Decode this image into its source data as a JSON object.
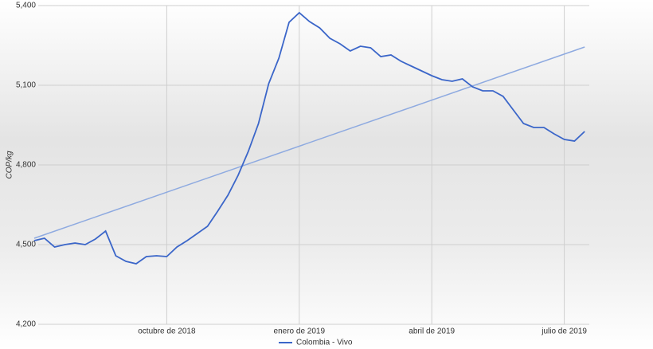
{
  "chart_data": {
    "type": "line",
    "y_label": "COP/kg",
    "categories": [
      null,
      null,
      null,
      null,
      null,
      null,
      null,
      null,
      null,
      null,
      null,
      null,
      null,
      "octubre de 2018",
      null,
      null,
      null,
      null,
      null,
      null,
      null,
      null,
      null,
      null,
      null,
      null,
      "enero de 2019",
      null,
      null,
      null,
      null,
      null,
      null,
      null,
      null,
      null,
      null,
      null,
      null,
      "abril de 2019",
      null,
      null,
      null,
      null,
      null,
      null,
      null,
      null,
      null,
      null,
      null,
      null,
      "julio de 2019",
      null,
      null
    ],
    "series": [
      {
        "name": "Colombia - Vivo",
        "color": "#3b66c9",
        "values": [
          4515,
          4524,
          4491,
          4500,
          4506,
          4500,
          4521,
          4551,
          4458,
          4437,
          4428,
          4455,
          4458,
          4455,
          4491,
          4515,
          4542,
          4569,
          4626,
          4686,
          4761,
          4851,
          4956,
          5106,
          5202,
          5337,
          5373,
          5340,
          5316,
          5277,
          5256,
          5229,
          5247,
          5241,
          5208,
          5214,
          5190,
          5172,
          5154,
          5136,
          5121,
          5115,
          5124,
          5094,
          5079,
          5079,
          5058,
          5007,
          4956,
          4941,
          4941,
          4917,
          4896,
          4890,
          4926
        ]
      }
    ],
    "trendline": {
      "color": "#8eaae0",
      "values": [
        4524,
        5244
      ]
    },
    "ylim": [
      4200,
      5400
    ],
    "yticks": [
      {
        "value": 4200,
        "label": "4,200"
      },
      {
        "value": 4500,
        "label": "4,500"
      },
      {
        "value": 4800,
        "label": "4,800"
      },
      {
        "value": 5100,
        "label": "5,100"
      },
      {
        "value": 5400,
        "label": "5,400"
      }
    ],
    "grid": true,
    "legend": "bottom"
  }
}
